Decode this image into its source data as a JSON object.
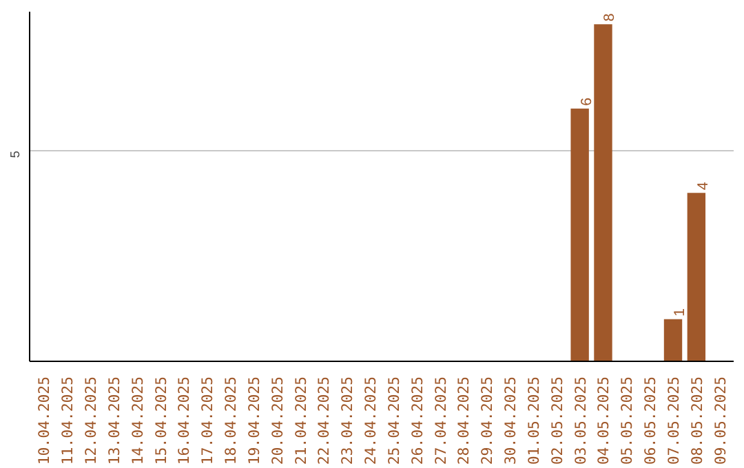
{
  "chart_data": {
    "type": "bar",
    "categories": [
      "10.04.2025",
      "11.04.2025",
      "12.04.2025",
      "13.04.2025",
      "14.04.2025",
      "15.04.2025",
      "16.04.2025",
      "17.04.2025",
      "18.04.2025",
      "19.04.2025",
      "20.04.2025",
      "21.04.2025",
      "22.04.2025",
      "23.04.2025",
      "24.04.2025",
      "25.04.2025",
      "26.04.2025",
      "27.04.2025",
      "28.04.2025",
      "29.04.2025",
      "30.04.2025",
      "01.05.2025",
      "02.05.2025",
      "03.05.2025",
      "04.05.2025",
      "05.05.2025",
      "06.05.2025",
      "07.05.2025",
      "08.05.2025",
      "09.05.2025"
    ],
    "values": [
      null,
      null,
      null,
      null,
      null,
      null,
      null,
      null,
      null,
      null,
      null,
      null,
      null,
      null,
      null,
      null,
      null,
      null,
      null,
      null,
      null,
      null,
      null,
      6,
      8,
      null,
      null,
      1,
      4,
      null
    ],
    "color": "#a0582a",
    "ylim": [
      0,
      8.3
    ],
    "yticks": [
      5
    ],
    "grid": "y",
    "data_labels": true
  }
}
